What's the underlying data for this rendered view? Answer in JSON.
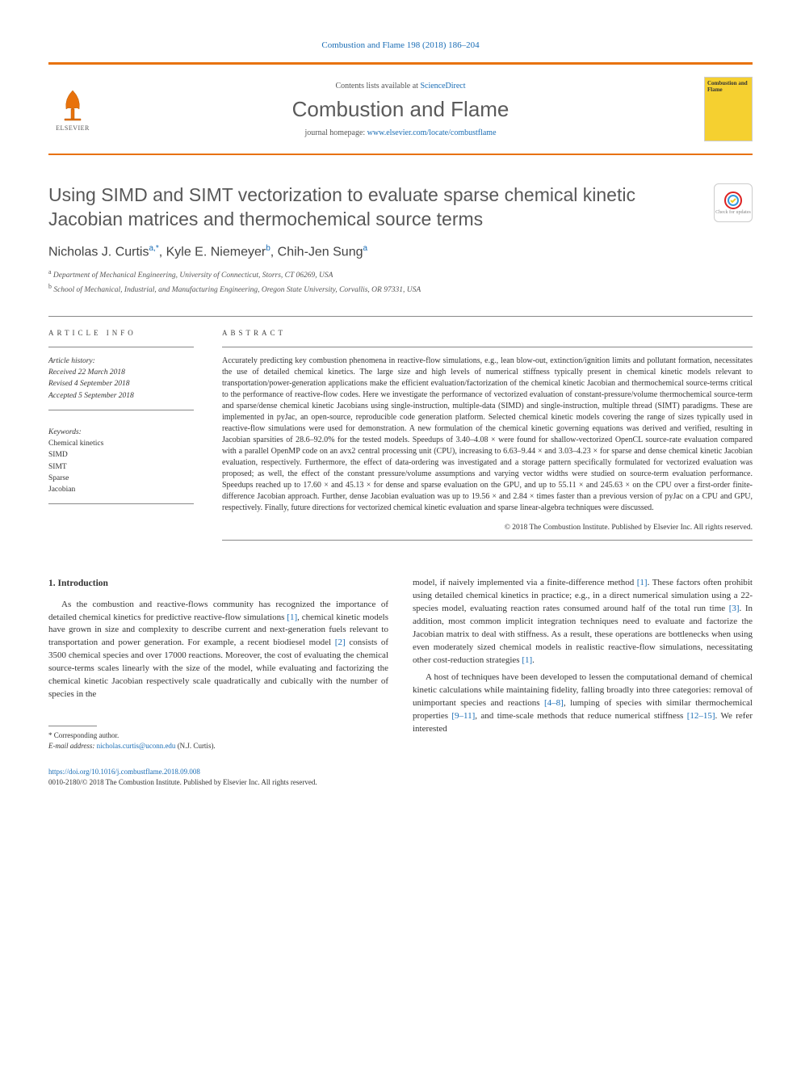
{
  "top_citation": "Combustion and Flame 198 (2018) 186–204",
  "header": {
    "contents_prefix": "Contents lists available at ",
    "contents_link": "ScienceDirect",
    "journal_name": "Combustion and Flame",
    "homepage_prefix": "journal homepage: ",
    "homepage_link": "www.elsevier.com/locate/combustflame",
    "elsevier_label": "ELSEVIER",
    "cover_text": "Combustion and Flame"
  },
  "title": "Using SIMD and SIMT vectorization to evaluate sparse chemical kinetic Jacobian matrices and thermochemical source terms",
  "crossmark_label": "Check for updates",
  "authors_html": "Nicholas J. Curtis",
  "author1": {
    "name": "Nicholas J. Curtis",
    "sup": "a,*"
  },
  "author2": {
    "name": "Kyle E. Niemeyer",
    "sup": "b"
  },
  "author3": {
    "name": "Chih-Jen Sung",
    "sup": "a"
  },
  "affiliations": {
    "a": "Department of Mechanical Engineering, University of Connecticut, Storrs, CT 06269, USA",
    "b": "School of Mechanical, Industrial, and Manufacturing Engineering, Oregon State University, Corvallis, OR 97331, USA"
  },
  "info": {
    "heading": "ARTICLE INFO",
    "history_label": "Article history:",
    "received": "Received 22 March 2018",
    "revised": "Revised 4 September 2018",
    "accepted": "Accepted 5 September 2018",
    "keywords_label": "Keywords:",
    "keywords": [
      "Chemical kinetics",
      "SIMD",
      "SIMT",
      "Sparse",
      "Jacobian"
    ]
  },
  "abstract": {
    "heading": "ABSTRACT",
    "text": "Accurately predicting key combustion phenomena in reactive-flow simulations, e.g., lean blow-out, extinction/ignition limits and pollutant formation, necessitates the use of detailed chemical kinetics. The large size and high levels of numerical stiffness typically present in chemical kinetic models relevant to transportation/power-generation applications make the efficient evaluation/factorization of the chemical kinetic Jacobian and thermochemical source-terms critical to the performance of reactive-flow codes. Here we investigate the performance of vectorized evaluation of constant-pressure/volume thermochemical source-term and sparse/dense chemical kinetic Jacobians using single-instruction, multiple-data (SIMD) and single-instruction, multiple thread (SIMT) paradigms. These are implemented in pyJac, an open-source, reproducible code generation platform. Selected chemical kinetic models covering the range of sizes typically used in reactive-flow simulations were used for demonstration. A new formulation of the chemical kinetic governing equations was derived and verified, resulting in Jacobian sparsities of 28.6–92.0% for the tested models. Speedups of 3.40–4.08 × were found for shallow-vectorized OpenCL source-rate evaluation compared with a parallel OpenMP code on an avx2 central processing unit (CPU), increasing to 6.63–9.44 × and 3.03–4.23 × for sparse and dense chemical kinetic Jacobian evaluation, respectively. Furthermore, the effect of data-ordering was investigated and a storage pattern specifically formulated for vectorized evaluation was proposed; as well, the effect of the constant pressure/volume assumptions and varying vector widths were studied on source-term evaluation performance. Speedups reached up to 17.60 × and 45.13 × for dense and sparse evaluation on the GPU, and up to 55.11 × and 245.63 × on the CPU over a first-order finite-difference Jacobian approach. Further, dense Jacobian evaluation was up to 19.56 × and 2.84 × times faster than a previous version of pyJac on a CPU and GPU, respectively. Finally, future directions for vectorized chemical kinetic evaluation and sparse linear-algebra techniques were discussed.",
    "copyright": "© 2018 The Combustion Institute. Published by Elsevier Inc. All rights reserved."
  },
  "body": {
    "section1_heading": "1. Introduction",
    "col1_p1": "As the combustion and reactive-flows community has recognized the importance of detailed chemical kinetics for predictive reactive-flow simulations [1], chemical kinetic models have grown in size and complexity to describe current and next-generation fuels relevant to transportation and power generation. For example, a recent biodiesel model [2] consists of 3500 chemical species and over 17000 reactions. Moreover, the cost of evaluating the chemical source-terms scales linearly with the size of the model, while evaluating and factorizing the chemical kinetic Jacobian respectively scale quadratically and cubically with the number of species in the",
    "col2_p1": "model, if naively implemented via a finite-difference method [1]. These factors often prohibit using detailed chemical kinetics in practice; e.g., in a direct numerical simulation using a 22-species model, evaluating reaction rates consumed around half of the total run time [3]. In addition, most common implicit integration techniques need to evaluate and factorize the Jacobian matrix to deal with stiffness. As a result, these operations are bottlenecks when using even moderately sized chemical models in realistic reactive-flow simulations, necessitating other cost-reduction strategies [1].",
    "col2_p2": "A host of techniques have been developed to lessen the computational demand of chemical kinetic calculations while maintaining fidelity, falling broadly into three categories: removal of unimportant species and reactions [4–8], lumping of species with similar thermochemical properties [9–11], and time-scale methods that reduce numerical stiffness [12–15]. We refer interested"
  },
  "footnote": {
    "corresp": "* Corresponding author.",
    "email_label": "E-mail address: ",
    "email": "nicholas.curtis@uconn.edu",
    "email_suffix": " (N.J. Curtis)."
  },
  "bottom": {
    "doi": "https://doi.org/10.1016/j.combustflame.2018.09.008",
    "issn_line": "0010-2180/© 2018 The Combustion Institute. Published by Elsevier Inc. All rights reserved."
  },
  "colors": {
    "accent_orange": "#e8720c",
    "link_blue": "#1a6db5",
    "title_gray": "#585858",
    "cover_yellow": "#f5d030"
  }
}
